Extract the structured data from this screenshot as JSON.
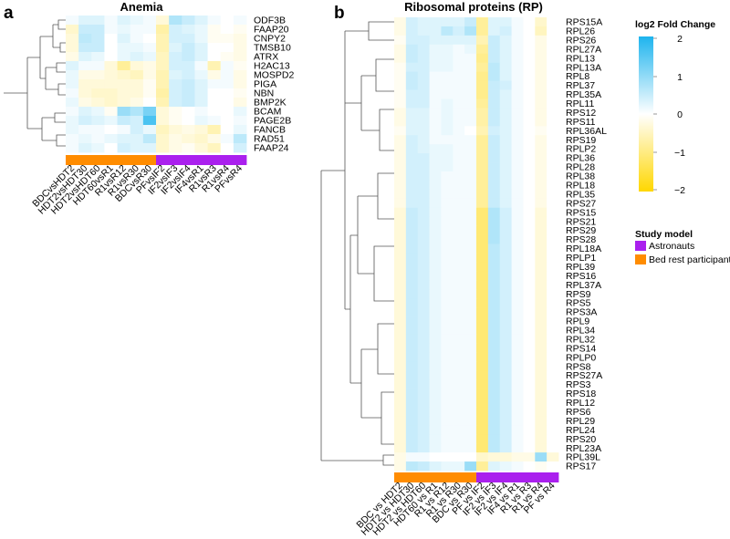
{
  "panels": [
    {
      "letter": "a",
      "title": "Anemia"
    },
    {
      "letter": "b",
      "title": "Ribosomal proteins (RP)"
    }
  ],
  "colors": {
    "negative": "#ffd700",
    "neutral": "#ffffff",
    "positive": "#1eb4ee",
    "astronauts": "#aa20ee",
    "bed_rest": "#ff8c00",
    "dendrogram": "#555555"
  },
  "legend": {
    "colorbar_title": "log2 Fold Change",
    "colorbar_ticks": [
      "2",
      "1",
      "0",
      "−1",
      "−2"
    ],
    "groups_title": "Study model",
    "groups": [
      {
        "label": "Astronauts",
        "color": "#aa20ee"
      },
      {
        "label": "Bed rest participants",
        "color": "#ff8c00"
      }
    ]
  },
  "chart_data": [
    {
      "type": "heatmap",
      "title": "Anemia",
      "value_label": "log2 Fold Change",
      "zlim": [
        -2,
        2
      ],
      "columns": [
        "BDCvsHDT2",
        "HDT2vsHDT30",
        "HDT2vsHDT60",
        "HDT60vsR1",
        "R1vsR12",
        "R1vsR30",
        "BDCvsR30",
        "PFvsIF2",
        "IF2vsIF3",
        "IF2vsIF4",
        "IF4vsR1",
        "R1vsR3",
        "R1vsR4",
        "PFvsR4"
      ],
      "column_groups": [
        "Bed rest participants",
        "Bed rest participants",
        "Bed rest participants",
        "Bed rest participants",
        "Bed rest participants",
        "Bed rest participants",
        "Bed rest participants",
        "Astronauts",
        "Astronauts",
        "Astronauts",
        "Astronauts",
        "Astronauts",
        "Astronauts",
        "Astronauts"
      ],
      "rows": [
        "ODF3B",
        "FAAP20",
        "CNPY2",
        "TMSB10",
        "ATRX",
        "H2AC13",
        "MOSPD2",
        "PIGA",
        "NBN",
        "BMP2K",
        "BCAM",
        "PAGE2B",
        "FANCB",
        "RAD51",
        "FAAP24"
      ],
      "values": [
        [
          0.1,
          0.3,
          0.3,
          0.1,
          0.3,
          0.2,
          0.1,
          -0.3,
          0.7,
          0.5,
          0.3,
          0.1,
          0,
          0.1
        ],
        [
          -0.4,
          0.5,
          0.5,
          0.1,
          0.2,
          0.1,
          0.1,
          -0.7,
          0.4,
          0.3,
          0.2,
          -0.1,
          0,
          -0.1
        ],
        [
          -0.3,
          0.6,
          0.5,
          0,
          0.3,
          0.1,
          0,
          -0.6,
          0.4,
          0.4,
          0.2,
          -0.1,
          -0.1,
          -0.2
        ],
        [
          -0.3,
          0.5,
          0.5,
          0,
          0.2,
          0.2,
          0.1,
          -0.6,
          0.3,
          0.5,
          0.3,
          0,
          0,
          -0.2
        ],
        [
          -0.2,
          0.3,
          0.2,
          0,
          0.2,
          0.3,
          0.2,
          -0.5,
          0.4,
          0.5,
          0.3,
          0,
          -0.1,
          -0.2
        ],
        [
          0.3,
          0.1,
          0.1,
          -0.3,
          -0.8,
          -0.3,
          -0.2,
          -0.5,
          0.4,
          0.4,
          0.1,
          -0.6,
          0.1,
          -0.1
        ],
        [
          0.2,
          -0.2,
          -0.2,
          -0.3,
          -0.4,
          -0.5,
          -0.2,
          -0.6,
          0.3,
          0.4,
          0.2,
          -0.2,
          0.1,
          -0.2
        ],
        [
          0.2,
          -0.3,
          -0.3,
          -0.3,
          -0.3,
          -0.3,
          -0.1,
          -0.6,
          0.4,
          0.5,
          0.3,
          0.1,
          0.1,
          -0.2
        ],
        [
          0.1,
          -0.3,
          -0.4,
          -0.4,
          -0.3,
          -0.3,
          -0.1,
          -0.7,
          0.4,
          0.5,
          0.3,
          0,
          0,
          -0.1
        ],
        [
          0.2,
          -0.2,
          -0.3,
          -0.4,
          -0.3,
          -0.2,
          0,
          -0.6,
          0.4,
          0.5,
          0.3,
          0,
          0,
          -0.2
        ],
        [
          0.1,
          0.3,
          0.2,
          -0.1,
          0.9,
          0.7,
          1.2,
          -0.3,
          -0.1,
          0,
          0.1,
          0,
          0,
          0.2
        ],
        [
          0.2,
          0.4,
          0.3,
          0.2,
          0.5,
          0.4,
          1.6,
          -0.3,
          -0.1,
          0,
          0.2,
          0.1,
          0,
          0.1
        ],
        [
          0.2,
          0.1,
          0.1,
          0,
          0.1,
          0.4,
          0.2,
          -0.5,
          -0.3,
          -0.2,
          -0.3,
          -0.6,
          0,
          0.2
        ],
        [
          0.1,
          0.2,
          0.1,
          0.2,
          0.3,
          0.3,
          0.6,
          -0.4,
          -0.2,
          -0.3,
          -0.4,
          -0.2,
          0.1,
          0.6
        ],
        [
          0.1,
          0.3,
          0.2,
          0,
          0.4,
          0.3,
          0.3,
          -0.4,
          -0.2,
          -0.1,
          -0.3,
          -0.5,
          0,
          0.4
        ]
      ]
    },
    {
      "type": "heatmap",
      "title": "Ribosomal proteins (RP)",
      "value_label": "log2 Fold Change",
      "zlim": [
        -2,
        2
      ],
      "columns": [
        "BDC vs HDT2",
        "HDT2 vs HDT30",
        "HDT2 vs HDT60",
        "HDT60 vs R1",
        "R1 vs R12",
        "R1 vs R30",
        "BDC vs R30",
        "PF vs IF2",
        "IF2 vs IF3",
        "IF2 vs IF4",
        "IF4 vs R1",
        "R1 vs R3",
        "R1 vs R4",
        "PF vs R4"
      ],
      "column_groups": [
        "Bed rest participants",
        "Bed rest participants",
        "Bed rest participants",
        "Bed rest participants",
        "Bed rest participants",
        "Bed rest participants",
        "Bed rest participants",
        "Astronauts",
        "Astronauts",
        "Astronauts",
        "Astronauts",
        "Astronauts",
        "Astronauts",
        "Astronauts"
      ],
      "rows": [
        "RPS15A",
        "RPL26",
        "RPS26",
        "RPL27A",
        "RPL13",
        "RPL13A",
        "RPL8",
        "RPL37",
        "RPL35A",
        "RPL11",
        "RPS12",
        "RPS11",
        "RPL36AL",
        "RPS19",
        "RPLP2",
        "RPL36",
        "RPL28",
        "RPL38",
        "RPL18",
        "RPL35",
        "RPS27",
        "RPS15",
        "RPS21",
        "RPS29",
        "RPS28",
        "RPL18A",
        "RPLP1",
        "RPL39",
        "RPS16",
        "RPL37A",
        "RPS9",
        "RPS5",
        "RPS3A",
        "RPL9",
        "RPL34",
        "RPL32",
        "RPS14",
        "RPLP0",
        "RPS8",
        "RPS27A",
        "RPS3",
        "RPS18",
        "RPL12",
        "RPS6",
        "RPL29",
        "RPL24",
        "RPS20",
        "RPL23A",
        "RPL39L",
        "RPS17"
      ],
      "values": [
        [
          -0.2,
          0.4,
          0.3,
          0.3,
          0.3,
          0.3,
          0.5,
          -0.8,
          0.3,
          0.3,
          0.1,
          0,
          -0.4,
          0
        ],
        [
          -0.2,
          0.4,
          0.3,
          0.3,
          0.6,
          0.4,
          0.7,
          -0.8,
          0.3,
          0.4,
          0.1,
          0,
          -0.5,
          0
        ],
        [
          -0.1,
          0.4,
          0.4,
          0.3,
          0.3,
          0.3,
          0.3,
          -0.6,
          0.5,
          0.3,
          0.1,
          0,
          -0.2,
          0
        ],
        [
          -0.2,
          0.5,
          0.4,
          0.2,
          0.2,
          0.1,
          0.2,
          -0.8,
          0.5,
          0.3,
          0.1,
          0,
          -0.2,
          0
        ],
        [
          -0.2,
          0.5,
          0.4,
          0.2,
          0.2,
          0.1,
          0.1,
          -0.9,
          0.5,
          0.3,
          0.1,
          0,
          -0.2,
          0
        ],
        [
          -0.1,
          0.4,
          0.4,
          0.2,
          0.2,
          0.1,
          0.1,
          -0.8,
          0.6,
          0.3,
          0.1,
          0,
          -0.2,
          0
        ],
        [
          -0.1,
          0.5,
          0.4,
          0.1,
          0.1,
          0.1,
          0.1,
          -0.9,
          0.6,
          0.3,
          0.1,
          0,
          -0.2,
          0
        ],
        [
          -0.1,
          0.5,
          0.4,
          0.1,
          0.1,
          0.1,
          0.1,
          -0.9,
          0.5,
          0.4,
          0.1,
          0,
          -0.2,
          0
        ],
        [
          -0.1,
          0.4,
          0.4,
          0.1,
          0.1,
          0.1,
          0.1,
          -0.9,
          0.5,
          0.3,
          0.1,
          0,
          -0.2,
          0
        ],
        [
          -0.1,
          0.4,
          0.4,
          0.1,
          0.2,
          0.1,
          0.1,
          -0.8,
          0.5,
          0.3,
          0.1,
          0,
          -0.2,
          0
        ],
        [
          -0.2,
          0.3,
          0.3,
          0.1,
          0.2,
          0.1,
          0.1,
          -0.7,
          0.5,
          0.3,
          0.1,
          0,
          -0.2,
          0
        ],
        [
          -0.2,
          0.3,
          0.3,
          0.1,
          0.2,
          0.1,
          0.1,
          -0.7,
          0.5,
          0.3,
          0.1,
          0,
          -0.2,
          0
        ],
        [
          -0.1,
          0.3,
          0.3,
          0.1,
          0.2,
          0.1,
          0,
          -0.6,
          0.4,
          0.3,
          0.1,
          0,
          -0.1,
          0
        ],
        [
          -0.2,
          0.4,
          0.3,
          0.1,
          0.1,
          0.1,
          0.1,
          -0.8,
          0.5,
          0.3,
          0.1,
          0,
          -0.2,
          0
        ],
        [
          -0.2,
          0.4,
          0.3,
          0.2,
          0.2,
          0.1,
          0.1,
          -0.8,
          0.5,
          0.3,
          0.1,
          0,
          -0.2,
          0
        ],
        [
          -0.2,
          0.4,
          0.4,
          0.2,
          0.2,
          0.1,
          0.1,
          -0.8,
          0.5,
          0.3,
          0.1,
          0,
          -0.2,
          0
        ],
        [
          -0.2,
          0.4,
          0.4,
          0.2,
          0.2,
          0.1,
          0.1,
          -0.8,
          0.5,
          0.3,
          0.1,
          0,
          -0.2,
          0
        ],
        [
          -0.2,
          0.4,
          0.4,
          0.2,
          0.1,
          0.1,
          0.1,
          -0.8,
          0.5,
          0.3,
          0.1,
          0,
          -0.2,
          0
        ],
        [
          -0.2,
          0.4,
          0.4,
          0.2,
          0.1,
          0.1,
          0.1,
          -0.8,
          0.5,
          0.3,
          0.1,
          0,
          -0.2,
          0
        ],
        [
          -0.2,
          0.4,
          0.4,
          0.2,
          0.1,
          0.1,
          0.1,
          -0.8,
          0.5,
          0.3,
          0.1,
          0,
          -0.2,
          0
        ],
        [
          -0.2,
          0.4,
          0.4,
          0.2,
          0.1,
          0.1,
          0.1,
          -0.8,
          0.5,
          0.3,
          0.1,
          0,
          -0.2,
          0
        ],
        [
          -0.3,
          0.5,
          0.4,
          0.2,
          0.1,
          0.1,
          0.1,
          -1.1,
          0.7,
          0.4,
          0.1,
          0,
          -0.3,
          0
        ],
        [
          -0.3,
          0.5,
          0.4,
          0.2,
          0.1,
          0.1,
          0.1,
          -1.1,
          0.7,
          0.4,
          0.1,
          0,
          -0.3,
          0
        ],
        [
          -0.3,
          0.5,
          0.4,
          0.2,
          0.1,
          0.1,
          0.1,
          -1.1,
          0.7,
          0.4,
          0.1,
          0,
          -0.3,
          0
        ],
        [
          -0.3,
          0.5,
          0.4,
          0.2,
          0.1,
          0.1,
          0.1,
          -1.1,
          0.7,
          0.4,
          0.1,
          0,
          -0.3,
          0
        ],
        [
          -0.3,
          0.5,
          0.4,
          0.2,
          0.1,
          0.1,
          0.1,
          -1.1,
          0.6,
          0.4,
          0.1,
          0,
          -0.3,
          0
        ],
        [
          -0.3,
          0.5,
          0.4,
          0.2,
          0.1,
          0.1,
          0.1,
          -1.1,
          0.6,
          0.4,
          0.1,
          0,
          -0.3,
          0
        ],
        [
          -0.3,
          0.5,
          0.4,
          0.2,
          0.1,
          0.1,
          0.1,
          -1.1,
          0.6,
          0.4,
          0.1,
          0,
          -0.3,
          0
        ],
        [
          -0.3,
          0.5,
          0.4,
          0.2,
          0.1,
          0.1,
          0.1,
          -1.1,
          0.6,
          0.4,
          0.1,
          0,
          -0.3,
          0
        ],
        [
          -0.3,
          0.5,
          0.4,
          0.2,
          0.1,
          0.1,
          0.1,
          -1.1,
          0.6,
          0.4,
          0.1,
          0,
          -0.3,
          0
        ],
        [
          -0.3,
          0.5,
          0.4,
          0.2,
          0.1,
          0.1,
          0.1,
          -1.1,
          0.6,
          0.4,
          0.1,
          0,
          -0.3,
          0
        ],
        [
          -0.3,
          0.5,
          0.4,
          0.2,
          0.1,
          0.1,
          0.1,
          -1.1,
          0.6,
          0.4,
          0.1,
          0,
          -0.3,
          0
        ],
        [
          -0.3,
          0.5,
          0.4,
          0.2,
          0.1,
          0.1,
          0.1,
          -1.1,
          0.6,
          0.4,
          0.1,
          0,
          -0.3,
          0
        ],
        [
          -0.3,
          0.5,
          0.4,
          0.2,
          0.1,
          0.1,
          0.1,
          -1.1,
          0.6,
          0.4,
          0.1,
          0,
          -0.3,
          0
        ],
        [
          -0.3,
          0.5,
          0.4,
          0.2,
          0.1,
          0.1,
          0.1,
          -1.1,
          0.6,
          0.4,
          0.1,
          0,
          -0.3,
          0
        ],
        [
          -0.3,
          0.5,
          0.4,
          0.2,
          0.1,
          0.1,
          0.1,
          -1.1,
          0.6,
          0.4,
          0.1,
          0,
          -0.3,
          0
        ],
        [
          -0.3,
          0.5,
          0.4,
          0.2,
          0.1,
          0.1,
          0.1,
          -1.1,
          0.6,
          0.4,
          0.1,
          0,
          -0.3,
          0
        ],
        [
          -0.3,
          0.5,
          0.4,
          0.2,
          0.1,
          0.1,
          0.1,
          -1.1,
          0.6,
          0.4,
          0.1,
          0,
          -0.3,
          0
        ],
        [
          -0.3,
          0.5,
          0.4,
          0.2,
          0.1,
          0.1,
          0.1,
          -1.1,
          0.6,
          0.4,
          0.1,
          0,
          -0.3,
          0
        ],
        [
          -0.3,
          0.5,
          0.4,
          0.2,
          0.1,
          0.1,
          0.1,
          -1.1,
          0.6,
          0.4,
          0.1,
          0,
          -0.3,
          0
        ],
        [
          -0.3,
          0.5,
          0.4,
          0.2,
          0.1,
          0.1,
          0.1,
          -1.1,
          0.6,
          0.4,
          0.1,
          0,
          -0.3,
          0
        ],
        [
          -0.3,
          0.5,
          0.4,
          0.2,
          0.1,
          0.1,
          0.1,
          -1.1,
          0.6,
          0.4,
          0.1,
          0,
          -0.3,
          0
        ],
        [
          -0.3,
          0.5,
          0.4,
          0.2,
          0.1,
          0.1,
          0.1,
          -1.1,
          0.6,
          0.4,
          0.1,
          0,
          -0.3,
          0
        ],
        [
          -0.3,
          0.5,
          0.4,
          0.2,
          0.1,
          0.1,
          0.1,
          -1.1,
          0.6,
          0.4,
          0.1,
          0,
          -0.3,
          0
        ],
        [
          -0.3,
          0.5,
          0.4,
          0.2,
          0.1,
          0.1,
          0.1,
          -1.1,
          0.6,
          0.4,
          0.1,
          0,
          -0.3,
          0
        ],
        [
          -0.3,
          0.5,
          0.4,
          0.2,
          0.1,
          0.1,
          0.1,
          -1.1,
          0.6,
          0.4,
          0.1,
          0,
          -0.3,
          0
        ],
        [
          -0.3,
          0.5,
          0.4,
          0.2,
          0.1,
          0.1,
          0.1,
          -1.1,
          0.6,
          0.4,
          0.1,
          0,
          -0.3,
          0
        ],
        [
          -0.3,
          0.5,
          0.4,
          0.2,
          0.1,
          0.1,
          0.1,
          -1.1,
          0.6,
          0.4,
          0.1,
          0,
          -0.3,
          0
        ],
        [
          -0.2,
          0.1,
          0.1,
          0,
          0,
          0,
          0,
          -0.4,
          -0.3,
          -0.3,
          -0.2,
          -0.2,
          0.9,
          -0.3
        ],
        [
          -0.2,
          0.6,
          0.5,
          0.3,
          0.2,
          0.2,
          0.9,
          -0.8,
          0.3,
          0.2,
          0.1,
          0,
          -0.1,
          0
        ]
      ]
    }
  ]
}
